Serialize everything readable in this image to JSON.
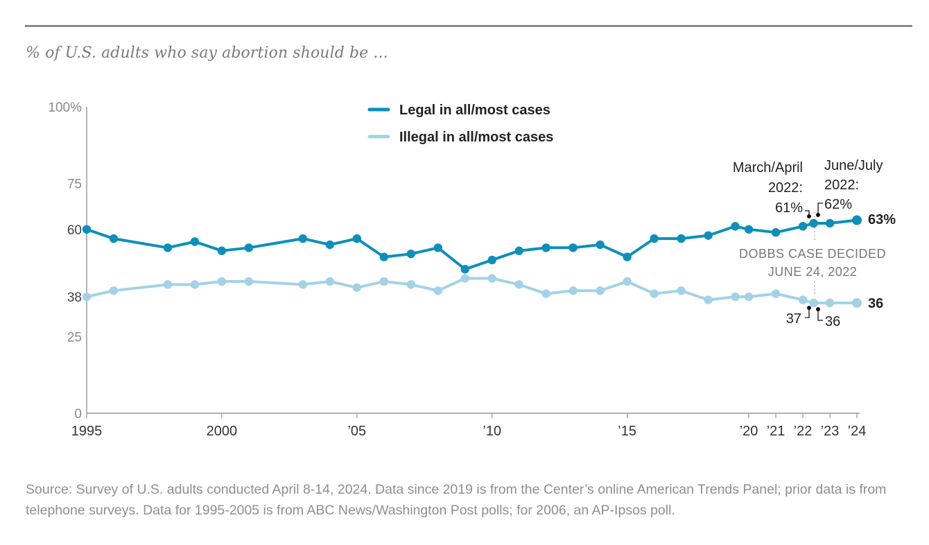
{
  "subtitle": "% of U.S. adults who say abortion should be ...",
  "source": "Source: Survey of U.S. adults conducted April 8-14, 2024. Data since 2019 is from the Center’s online American Trends Panel; prior data is from telephone surveys. Data for 1995-2005 is from ABC News/Washington Post polls; for 2006, an AP-Ipsos poll.",
  "chart_data": {
    "type": "line",
    "title": "% of U.S. adults who say abortion should be ...",
    "xlabel": "",
    "ylabel": "",
    "ylim": [
      0,
      100
    ],
    "y_ticks": [
      {
        "value": 0,
        "label": "0"
      },
      {
        "value": 25,
        "label": "25"
      },
      {
        "value": 38,
        "label": "38"
      },
      {
        "value": 60,
        "label": "60"
      },
      {
        "value": 75,
        "label": "75"
      },
      {
        "value": 100,
        "label": "100%"
      }
    ],
    "x_ticks": [
      {
        "value": 1995,
        "label": "1995"
      },
      {
        "value": 2000,
        "label": "2000"
      },
      {
        "value": 2005,
        "label": "’05"
      },
      {
        "value": 2010,
        "label": "’10"
      },
      {
        "value": 2015,
        "label": "’15"
      },
      {
        "value": 2019.5,
        "label": "’20"
      },
      {
        "value": 2020.5,
        "label": "’21"
      },
      {
        "value": 2021.5,
        "label": "’22"
      },
      {
        "value": 2022.5,
        "label": "’23"
      },
      {
        "value": 2023.5,
        "label": "’24"
      }
    ],
    "legend": [
      {
        "name": "Legal in all/most cases",
        "color": "#0d8fba"
      },
      {
        "name": "Illegal in all/most cases",
        "color": "#a3d2e6"
      }
    ],
    "series": [
      {
        "name": "Legal in all/most cases",
        "color": "#0d8fba",
        "points": [
          {
            "x": 1995.0,
            "y": 60
          },
          {
            "x": 1996.0,
            "y": 57
          },
          {
            "x": 1998.0,
            "y": 54
          },
          {
            "x": 1999.0,
            "y": 56
          },
          {
            "x": 2000.0,
            "y": 53
          },
          {
            "x": 2001.0,
            "y": 54
          },
          {
            "x": 2003.0,
            "y": 57
          },
          {
            "x": 2004.0,
            "y": 55
          },
          {
            "x": 2005.0,
            "y": 57
          },
          {
            "x": 2006.0,
            "y": 51
          },
          {
            "x": 2007.0,
            "y": 52
          },
          {
            "x": 2008.0,
            "y": 54
          },
          {
            "x": 2009.0,
            "y": 47
          },
          {
            "x": 2010.0,
            "y": 50
          },
          {
            "x": 2011.0,
            "y": 53
          },
          {
            "x": 2012.0,
            "y": 54
          },
          {
            "x": 2013.0,
            "y": 54
          },
          {
            "x": 2014.0,
            "y": 55
          },
          {
            "x": 2015.0,
            "y": 51
          },
          {
            "x": 2016.0,
            "y": 57
          },
          {
            "x": 2017.0,
            "y": 57
          },
          {
            "x": 2018.0,
            "y": 58
          },
          {
            "x": 2019.0,
            "y": 61
          },
          {
            "x": 2019.5,
            "y": 60
          },
          {
            "x": 2020.5,
            "y": 59
          },
          {
            "x": 2021.5,
            "y": 61
          },
          {
            "x": 2021.9,
            "y": 62
          },
          {
            "x": 2022.5,
            "y": 62
          },
          {
            "x": 2023.5,
            "y": 63
          }
        ]
      },
      {
        "name": "Illegal in all/most cases",
        "color": "#a3d2e6",
        "points": [
          {
            "x": 1995.0,
            "y": 38
          },
          {
            "x": 1996.0,
            "y": 40
          },
          {
            "x": 1998.0,
            "y": 42
          },
          {
            "x": 1999.0,
            "y": 42
          },
          {
            "x": 2000.0,
            "y": 43
          },
          {
            "x": 2001.0,
            "y": 43
          },
          {
            "x": 2003.0,
            "y": 42
          },
          {
            "x": 2004.0,
            "y": 43
          },
          {
            "x": 2005.0,
            "y": 41
          },
          {
            "x": 2006.0,
            "y": 43
          },
          {
            "x": 2007.0,
            "y": 42
          },
          {
            "x": 2008.0,
            "y": 40
          },
          {
            "x": 2009.0,
            "y": 44
          },
          {
            "x": 2010.0,
            "y": 44
          },
          {
            "x": 2011.0,
            "y": 42
          },
          {
            "x": 2012.0,
            "y": 39
          },
          {
            "x": 2013.0,
            "y": 40
          },
          {
            "x": 2014.0,
            "y": 40
          },
          {
            "x": 2015.0,
            "y": 43
          },
          {
            "x": 2016.0,
            "y": 39
          },
          {
            "x": 2017.0,
            "y": 40
          },
          {
            "x": 2018.0,
            "y": 37
          },
          {
            "x": 2019.0,
            "y": 38
          },
          {
            "x": 2019.5,
            "y": 38
          },
          {
            "x": 2020.5,
            "y": 39
          },
          {
            "x": 2021.5,
            "y": 37
          },
          {
            "x": 2021.9,
            "y": 36
          },
          {
            "x": 2022.5,
            "y": 36
          },
          {
            "x": 2023.5,
            "y": 36
          }
        ]
      }
    ],
    "end_labels": {
      "legal": "63%",
      "illegal": "36"
    },
    "annotations": {
      "march_april_line1": "March/April",
      "march_april_line2": "2022:",
      "march_april_value": "61%",
      "june_july_line1": "June/July",
      "june_july_line2": "2022:",
      "june_july_value": "62%",
      "dobbs_line1": "DOBBS CASE DECIDED",
      "dobbs_line2": "JUNE 24, 2022",
      "illegal_march_value": "37",
      "illegal_june_value": "36"
    }
  }
}
